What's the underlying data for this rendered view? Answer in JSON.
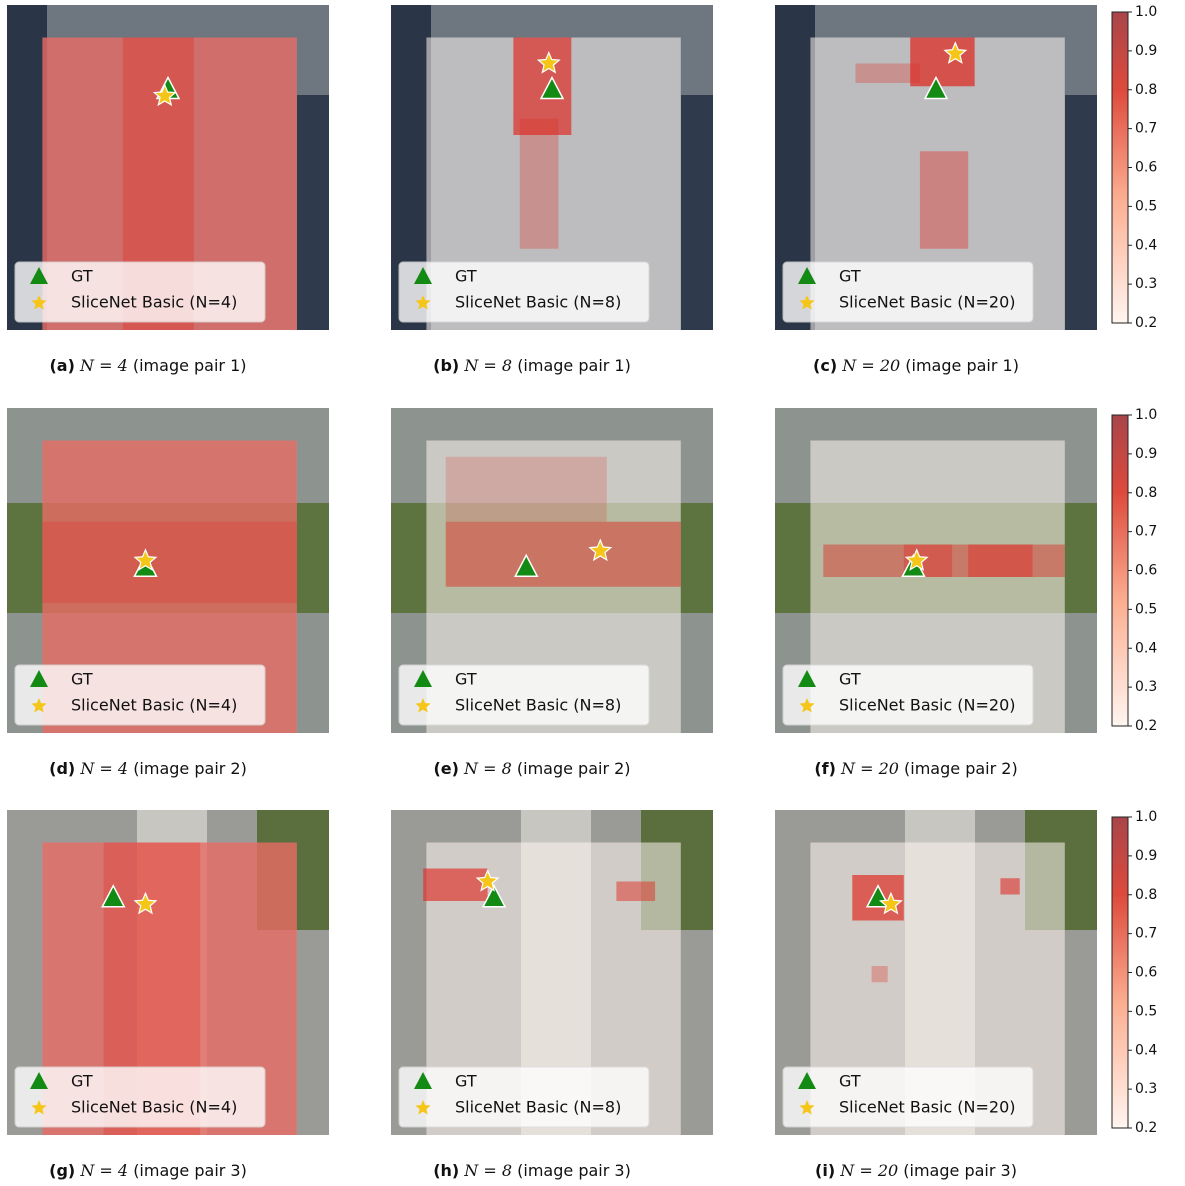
{
  "panels": [
    {
      "label": "(a)",
      "n": "N = 4",
      "pair": "(image pair 1)",
      "legend": [
        "GT",
        "SliceNet Basic (N=4)"
      ]
    },
    {
      "label": "(b)",
      "n": "N = 8",
      "pair": "(image pair 1)",
      "legend": [
        "GT",
        "SliceNet Basic (N=8)"
      ]
    },
    {
      "label": "(c)",
      "n": "N = 20",
      "pair": "(image pair 1)",
      "legend": [
        "GT",
        "SliceNet Basic (N=20)"
      ]
    },
    {
      "label": "(d)",
      "n": "N = 4",
      "pair": "(image pair 2)",
      "legend": [
        "GT",
        "SliceNet Basic (N=4)"
      ]
    },
    {
      "label": "(e)",
      "n": "N = 8",
      "pair": "(image pair 2)",
      "legend": [
        "GT",
        "SliceNet Basic (N=8)"
      ]
    },
    {
      "label": "(f)",
      "n": "N = 20",
      "pair": "(image pair 2)",
      "legend": [
        "GT",
        "SliceNet Basic (N=20)"
      ]
    },
    {
      "label": "(g)",
      "n": "N = 4",
      "pair": "(image pair 3)",
      "legend": [
        "GT",
        "SliceNet Basic (N=4)"
      ]
    },
    {
      "label": "(h)",
      "n": "N = 8",
      "pair": "(image pair 3)",
      "legend": [
        "GT",
        "SliceNet Basic (N=8)"
      ]
    },
    {
      "label": "(i)",
      "n": "N = 20",
      "pair": "(image pair 3)",
      "legend": [
        "GT",
        "SliceNet Basic (N=20)"
      ]
    }
  ],
  "colorbar": {
    "range": [
      0.2,
      1
    ],
    "ticks": [
      0.2,
      0.3,
      0.4,
      0.5,
      0.6,
      0.7,
      0.8,
      0.9,
      {
        "value": 1,
        "label": "1.0"
      }
    ]
  }
}
